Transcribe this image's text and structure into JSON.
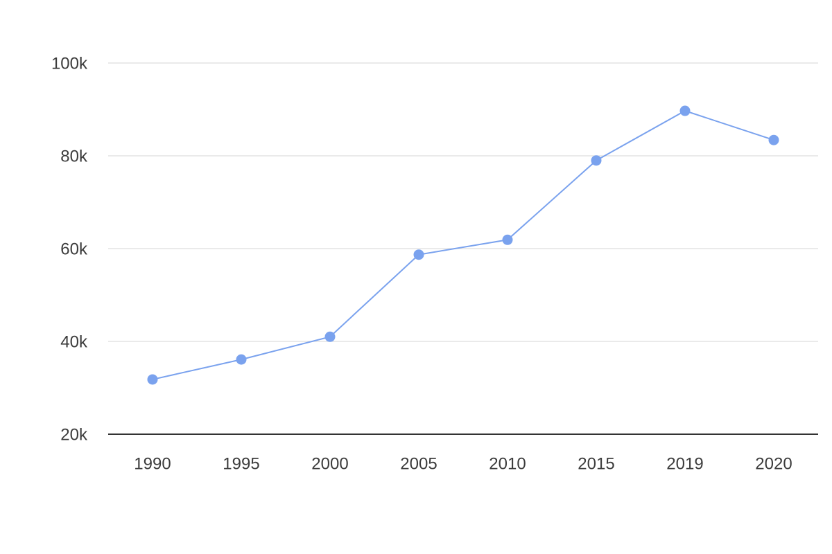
{
  "chart_data": {
    "type": "line",
    "categories": [
      "1990",
      "1995",
      "2000",
      "2005",
      "2010",
      "2015",
      "2019",
      "2020"
    ],
    "values": [
      31800,
      36100,
      41000,
      58700,
      61900,
      79000,
      89700,
      83400
    ],
    "color": "#7aa2ee",
    "ylim": [
      20000,
      100000
    ],
    "yticks": [
      {
        "value": 20000,
        "label": "20k"
      },
      {
        "value": 40000,
        "label": "40k"
      },
      {
        "value": 60000,
        "label": "60k"
      },
      {
        "value": 80000,
        "label": "80k"
      },
      {
        "value": 100000,
        "label": "100k"
      }
    ],
    "grid": true
  }
}
